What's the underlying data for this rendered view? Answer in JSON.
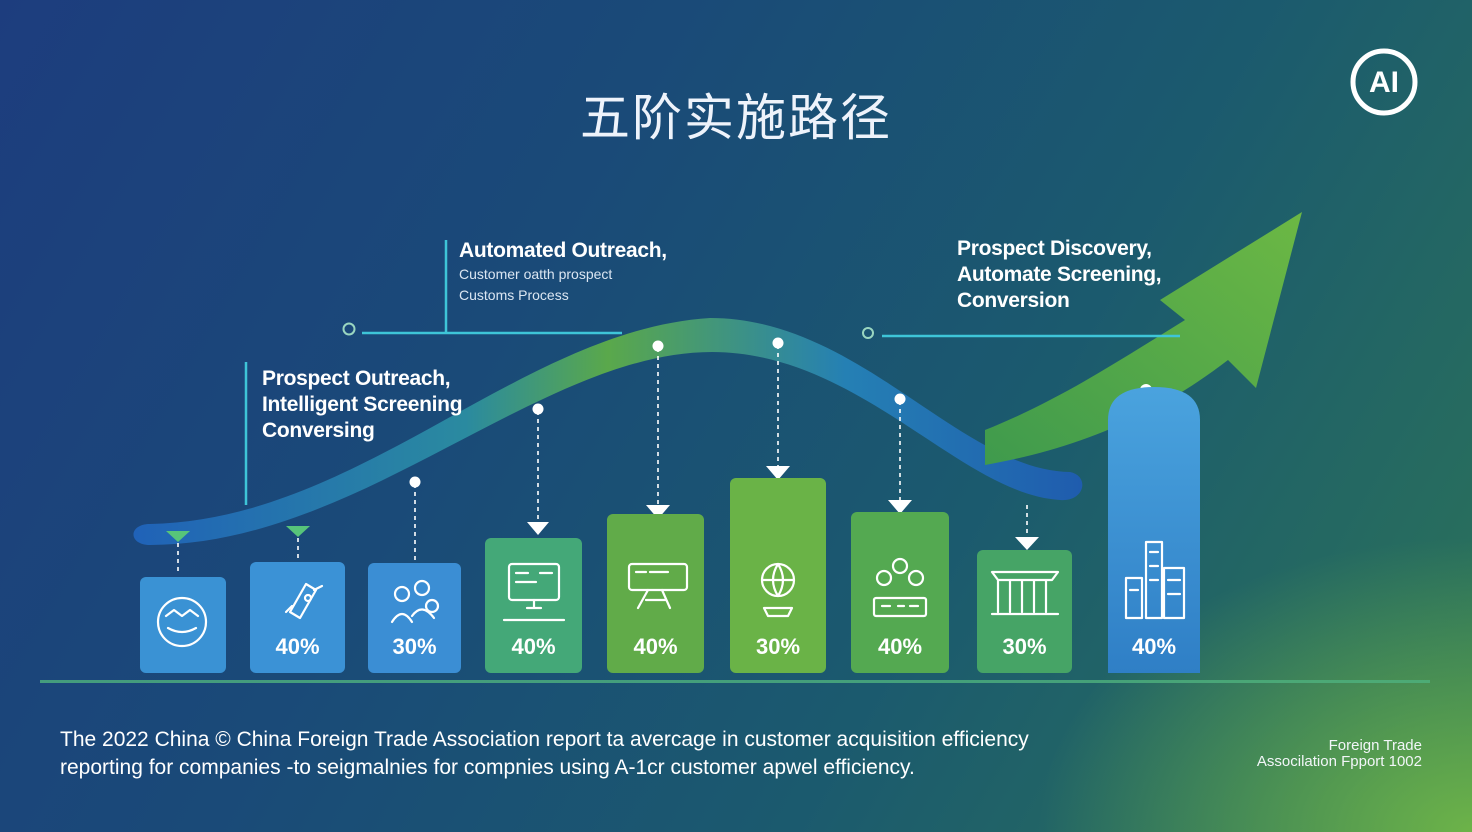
{
  "title": "五阶实施路径",
  "logo": {
    "text": "AI"
  },
  "callouts": {
    "left": {
      "lines": [
        "Prospect Outreach,",
        "Intelligent Screening",
        "Conversing"
      ]
    },
    "top": {
      "heading": "Automated Outreach,",
      "sublines": [
        "Customer oatth prospect",
        "Customs Process"
      ]
    },
    "right": {
      "lines": [
        "Prospect Discovery,",
        "Automate Screening,",
        "Conversion"
      ]
    }
  },
  "stages": [
    {
      "icon": "target-map-icon",
      "percent": "",
      "color": "#3a92d4"
    },
    {
      "icon": "rocket-icon",
      "percent": "40%",
      "color": "#3b92d6"
    },
    {
      "icon": "team-icon",
      "percent": "30%",
      "color": "#3b8ed4"
    },
    {
      "icon": "monitor-icon",
      "percent": "40%",
      "color": "#44a878"
    },
    {
      "icon": "screen-chart-icon",
      "percent": "40%",
      "color": "#61ab49"
    },
    {
      "icon": "globe-hand-icon",
      "percent": "30%",
      "color": "#6ab347"
    },
    {
      "icon": "people-tasks-icon",
      "percent": "40%",
      "color": "#54a951"
    },
    {
      "icon": "building-pillars-icon",
      "percent": "30%",
      "color": "#46a466"
    },
    {
      "icon": "city-buildings-icon",
      "percent": "40%",
      "color": "#3a8fd2"
    }
  ],
  "footnote": {
    "line1": "The 2022 China © China Foreign Trade Association report ta avercage in customer acquisition efficiency",
    "line2": "reporting for companies -to seigmalnies for compnies using A-1cr customer apwel efficiency."
  },
  "source": {
    "line1": "Foreign Trade",
    "line2": "Associlation Fpport 1002"
  }
}
